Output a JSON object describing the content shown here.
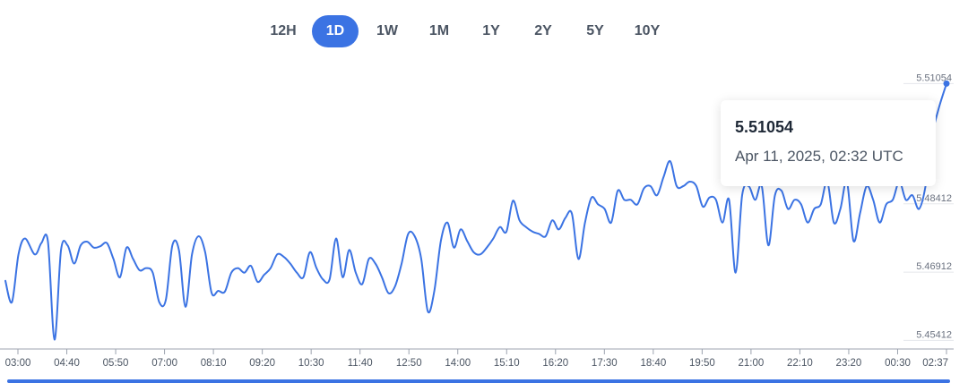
{
  "range_tabs": [
    {
      "label": "12H",
      "active": false
    },
    {
      "label": "1D",
      "active": true
    },
    {
      "label": "1W",
      "active": false
    },
    {
      "label": "1M",
      "active": false
    },
    {
      "label": "1Y",
      "active": false
    },
    {
      "label": "2Y",
      "active": false
    },
    {
      "label": "5Y",
      "active": false
    },
    {
      "label": "10Y",
      "active": false
    }
  ],
  "colors": {
    "line": "#3b73e3",
    "accent": "#3b73e3",
    "axis": "#9ca3af"
  },
  "tooltip": {
    "value": "5.51054",
    "date": "Apr 11, 2025, 02:32 UTC"
  },
  "chart_data": {
    "type": "line",
    "x_ticks": [
      "03:00",
      "04:40",
      "05:50",
      "07:00",
      "08:10",
      "09:20",
      "10:30",
      "11:40",
      "12:50",
      "14:00",
      "15:10",
      "16:20",
      "17:30",
      "18:40",
      "19:50",
      "21:00",
      "22:10",
      "23:20",
      "00:30",
      "02:37"
    ],
    "y_ticks": [
      "5.45412",
      "5.46912",
      "5.48412",
      "5.51054"
    ],
    "y_tick_values": [
      5.45412,
      5.46912,
      5.48412,
      5.51054
    ],
    "ylim": [
      5.4538,
      5.5116
    ],
    "x_range_minutes": [
      0,
      1437
    ],
    "series": [
      {
        "x": [
          0,
          10,
          20,
          30,
          45,
          55,
          65,
          75,
          85,
          95,
          105,
          115,
          125,
          135,
          145,
          155,
          165,
          175,
          185,
          195,
          205,
          215,
          225,
          235,
          245,
          255,
          265,
          275,
          285,
          295,
          305,
          315,
          325,
          335,
          345,
          355,
          365,
          375,
          385,
          395,
          405,
          415,
          425,
          435,
          445,
          455,
          465,
          475,
          485,
          495,
          505,
          515,
          525,
          535,
          545,
          555,
          565,
          575,
          585,
          595,
          605,
          615,
          625,
          635,
          645,
          655,
          665,
          675,
          685,
          695,
          705,
          715,
          725,
          735,
          745,
          755,
          765,
          775,
          785,
          795,
          805,
          815,
          825,
          835,
          845,
          855,
          865,
          875,
          885,
          895,
          905,
          915,
          925,
          935,
          945,
          955,
          965,
          975,
          985,
          995,
          1005,
          1015,
          1025,
          1035,
          1045,
          1055,
          1065,
          1075,
          1085,
          1095,
          1105,
          1115,
          1125,
          1135,
          1145,
          1155,
          1165,
          1175,
          1185,
          1195,
          1205,
          1215,
          1225,
          1235,
          1245,
          1255,
          1265,
          1275,
          1285,
          1295,
          1305,
          1315,
          1325,
          1335,
          1345,
          1355,
          1365,
          1375,
          1385,
          1395,
          1405,
          1415,
          1425,
          1437
        ],
        "y": [
          5.4672,
          5.4625,
          5.473,
          5.4765,
          5.473,
          5.4755,
          5.4758,
          5.4543,
          5.474,
          5.475,
          5.471,
          5.475,
          5.4758,
          5.4745,
          5.4748,
          5.4755,
          5.472,
          5.468,
          5.4745,
          5.472,
          5.4695,
          5.47,
          5.469,
          5.4625,
          5.463,
          5.475,
          5.474,
          5.4615,
          5.473,
          5.477,
          5.4735,
          5.4645,
          5.465,
          5.4648,
          5.469,
          5.47,
          5.469,
          5.4705,
          5.467,
          5.4685,
          5.47,
          5.473,
          5.4725,
          5.471,
          5.469,
          5.468,
          5.4735,
          5.47,
          5.4675,
          5.4675,
          5.4765,
          5.468,
          5.474,
          5.469,
          5.4665,
          5.472,
          5.471,
          5.468,
          5.4645,
          5.466,
          5.471,
          5.4775,
          5.477,
          5.472,
          5.4605,
          5.465,
          5.476,
          5.48,
          5.4745,
          5.4785,
          5.476,
          5.4735,
          5.473,
          5.4745,
          5.4765,
          5.479,
          5.478,
          5.4848,
          5.4805,
          5.479,
          5.478,
          5.4775,
          5.477,
          5.4805,
          5.4785,
          5.481,
          5.482,
          5.472,
          5.48,
          5.4855,
          5.484,
          5.483,
          5.48,
          5.487,
          5.485,
          5.485,
          5.484,
          5.4875,
          5.488,
          5.486,
          5.49,
          5.4935,
          5.488,
          5.488,
          5.489,
          5.488,
          5.4835,
          5.4855,
          5.485,
          5.48,
          5.485,
          5.469,
          5.486,
          5.488,
          5.485,
          5.488,
          5.475,
          5.486,
          5.487,
          5.483,
          5.485,
          5.484,
          5.48,
          5.483,
          5.484,
          5.489,
          5.48,
          5.483,
          5.489,
          5.476,
          5.482,
          5.488,
          5.485,
          5.48,
          5.484,
          5.485,
          5.489,
          5.485,
          5.486,
          5.483,
          5.488,
          5.499,
          5.505,
          5.5105
        ]
      }
    ],
    "highlight_point": {
      "x": 1437,
      "y": 5.51054
    }
  }
}
